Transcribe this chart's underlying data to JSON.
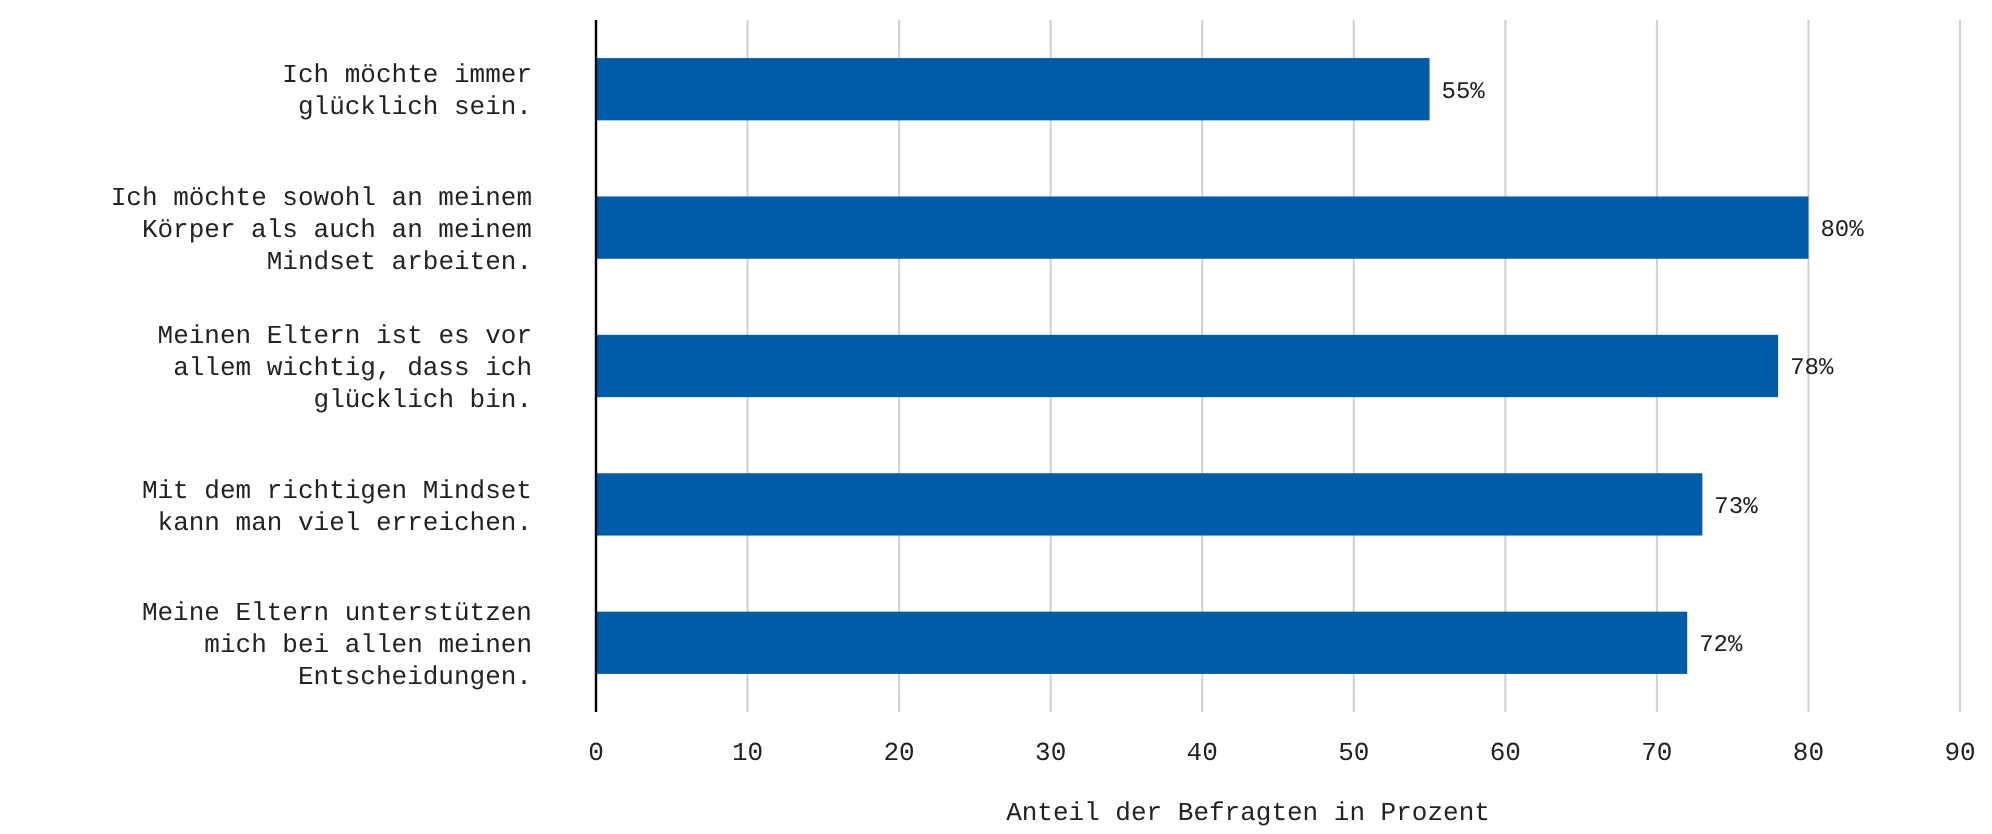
{
  "chart_data": {
    "type": "bar",
    "orientation": "horizontal",
    "xlabel": "Anteil der Befragten in Prozent",
    "categories": [
      "Ich möchte immer\nglücklich sein.",
      "Ich möchte sowohl an meinem\nKörper als auch an meinem\nMindset arbeiten.",
      "Meinen Eltern ist es vor\nallem wichtig, dass ich\nglücklich bin.",
      "Mit dem richtigen Mindset\nkann man viel erreichen.",
      "Meine Eltern unterstützen\nmich bei allen meinen\nEntscheidungen."
    ],
    "values": [
      55,
      80,
      78,
      73,
      72
    ],
    "color": "#005ca9",
    "value_labels": [
      "55%",
      "80%",
      "78%",
      "73%",
      "72%"
    ],
    "xlim": [
      0,
      90
    ],
    "xticks": [
      0,
      10,
      20,
      30,
      40,
      50,
      60,
      70,
      80,
      90
    ],
    "grid": "x"
  }
}
